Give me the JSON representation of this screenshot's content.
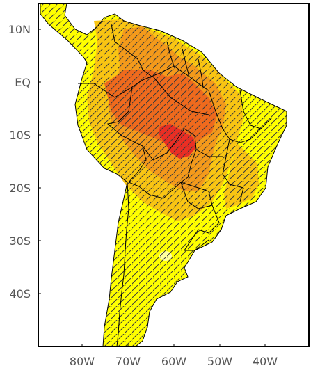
{
  "map": {
    "lat_labels": [
      "10N",
      "EQ",
      "10S",
      "20S",
      "30S",
      "40S"
    ],
    "lon_labels": [
      "80W",
      "70W",
      "60W",
      "50W",
      "40W"
    ],
    "colors": {
      "land_low": "#ffff00",
      "land_mid": "#f9c513",
      "land_high": "#f49a1b",
      "land_peak": "#ef6a1d",
      "land_max": "#ea2e24",
      "ocean": "#ffffff",
      "hatch": "#3a3a3a",
      "border": "#000000"
    }
  }
}
